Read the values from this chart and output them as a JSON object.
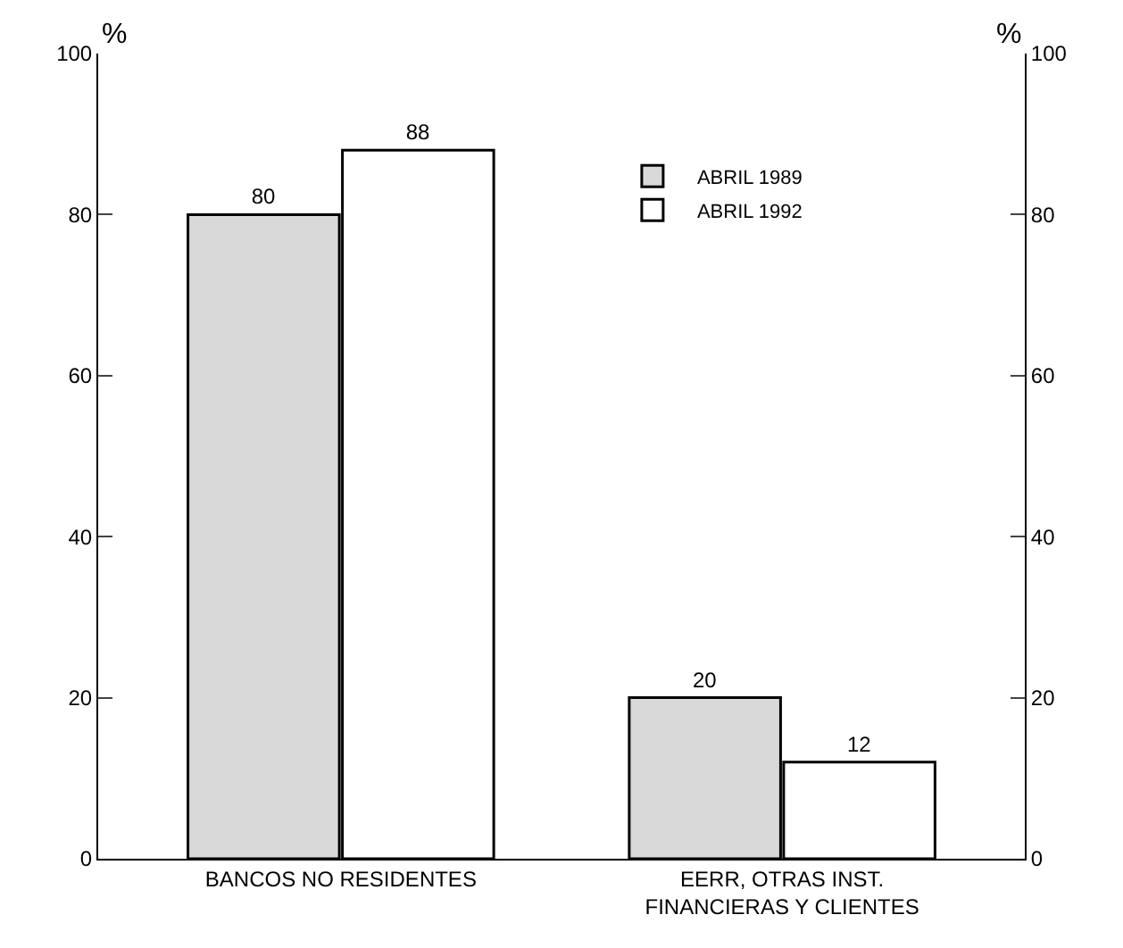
{
  "chart_data": {
    "type": "bar",
    "ylabel": "%",
    "y2label": "%",
    "categories": [
      "BANCOS NO RESIDENTES",
      "EERR, OTRAS INST.\nFINANCIERAS Y CLIENTES"
    ],
    "series": [
      {
        "name": "ABRIL 1989",
        "color": "#d9d9d9",
        "values": [
          80,
          20
        ]
      },
      {
        "name": "ABRIL 1992",
        "color": "#ffffff",
        "values": [
          88,
          12
        ]
      }
    ],
    "ylim": [
      0,
      100
    ],
    "yticks": [
      0,
      20,
      40,
      60,
      80,
      100
    ],
    "y2lim": [
      0,
      100
    ],
    "y2ticks": [
      0,
      20,
      40,
      60,
      80,
      100
    ],
    "data_labels": true,
    "legend": "top right",
    "grid": false
  }
}
